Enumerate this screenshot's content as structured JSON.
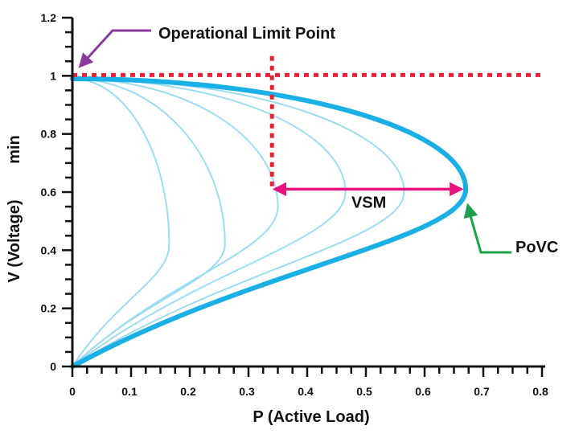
{
  "chart_data": {
    "type": "line",
    "title": "",
    "xlabel": "P  (Active Load)",
    "ylabel": "V (Voltage)",
    "ylabel_extra": "min",
    "xlim": [
      0,
      0.8
    ],
    "ylim": [
      0,
      1.2
    ],
    "x_ticks": [
      "0",
      "0.1",
      "0.2",
      "0.3",
      "0.4",
      "0.5",
      "0.6",
      "0.7",
      "0.8"
    ],
    "y_ticks": [
      "0",
      "0.2",
      "0.4",
      "0.6",
      "0.8",
      "1",
      "1.2"
    ],
    "grid": false,
    "colors": {
      "main_curve": "#1ab0e6",
      "family_curves": "#9edcf0",
      "limit_lines": "#e0243a",
      "vsm_arrow": "#e8127c",
      "operational_arrow": "#8a3a9a",
      "povc_arrow": "#1aa14a"
    },
    "main_curve": {
      "nose_p": 0.67,
      "nose_v": 0.61,
      "v_top": 0.99,
      "v_bottom": 0.0
    },
    "family_curves": [
      {
        "nose_p": 0.165,
        "nose_v": 0.42
      },
      {
        "nose_p": 0.26,
        "nose_v": 0.42
      },
      {
        "nose_p": 0.35,
        "nose_v": 0.55
      },
      {
        "nose_p": 0.465,
        "nose_v": 0.6
      },
      {
        "nose_p": 0.565,
        "nose_v": 0.6
      }
    ],
    "limit_lines": {
      "v_limit": 1.0,
      "p_limit": 0.34,
      "p_limit_v_range": [
        0.62,
        1.07
      ]
    },
    "vsm": {
      "p_start": 0.34,
      "p_end": 0.67,
      "v": 0.61
    },
    "annotations": {
      "operational_limit": "Operational Limit Point",
      "vsm": "VSM",
      "povc": "PoVC"
    }
  }
}
